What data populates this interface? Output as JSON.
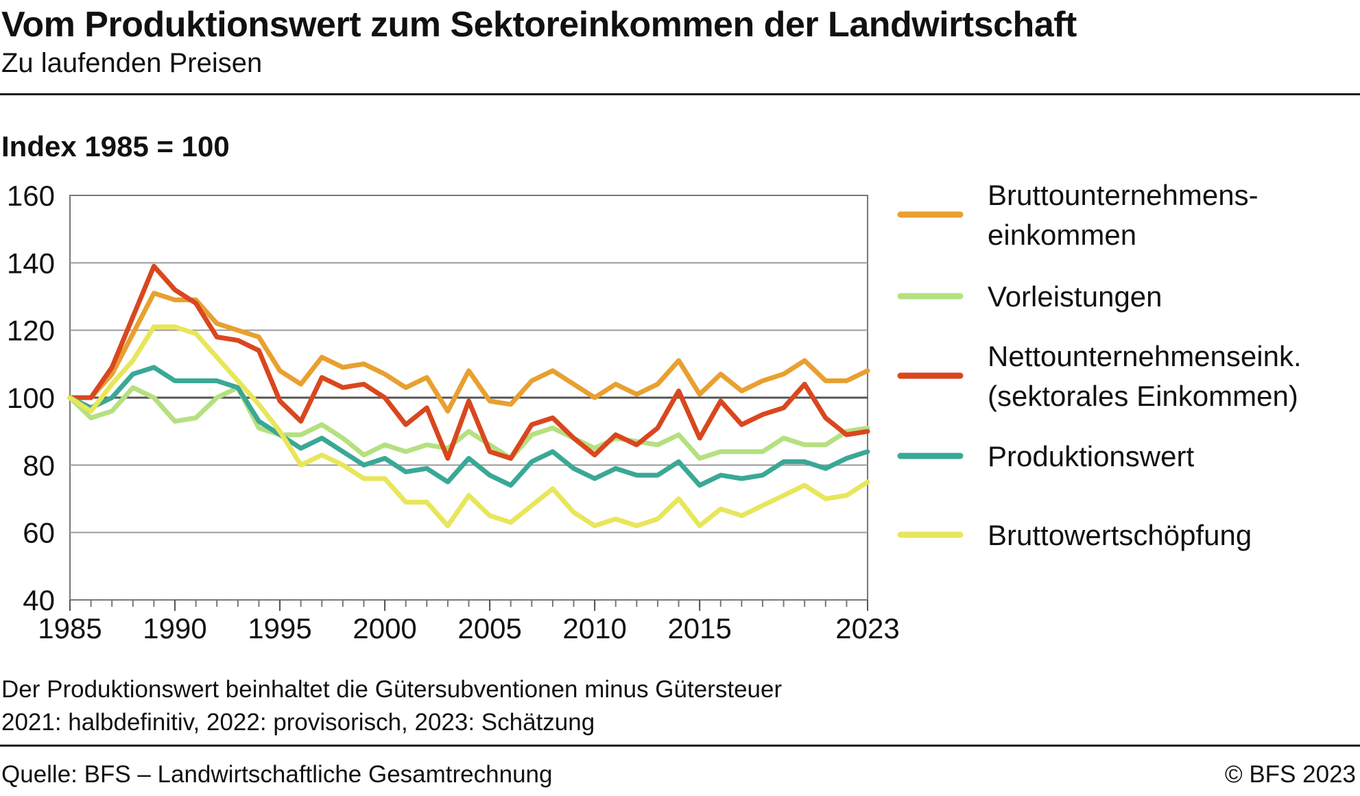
{
  "header": {
    "title": "Vom Produktionswert zum Sektoreinkommen der Landwirtschaft",
    "subtitle": "Zu laufenden Preisen"
  },
  "footer": {
    "note1": "Der Produktionswert beinhaltet die Gütersubventionen minus Gütersteuer",
    "note2": "2021: halbdefinitiv, 2022: provisorisch, 2023: Schätzung",
    "source": "Quelle: BFS – Landwirtschaftliche Gesamtrechnung",
    "copyright": "© BFS 2023"
  },
  "chart_data": {
    "type": "line",
    "ylabel": "Index 1985 = 100",
    "ylim": [
      40,
      160
    ],
    "yticks": [
      40,
      60,
      80,
      100,
      120,
      140,
      160
    ],
    "xlim": [
      1985,
      2023
    ],
    "xticks": [
      1985,
      1990,
      1995,
      2000,
      2005,
      2010,
      2015,
      2023
    ],
    "grid": true,
    "reference_line": 100,
    "legend_position": "right",
    "x": [
      1985,
      1986,
      1987,
      1988,
      1989,
      1990,
      1991,
      1992,
      1993,
      1994,
      1995,
      1996,
      1997,
      1998,
      1999,
      2000,
      2001,
      2002,
      2003,
      2004,
      2005,
      2006,
      2007,
      2008,
      2009,
      2010,
      2011,
      2012,
      2013,
      2014,
      2015,
      2016,
      2017,
      2018,
      2019,
      2020,
      2021,
      2022,
      2023
    ],
    "series": [
      {
        "name": "Bruttounternehmens-\neinkommen",
        "color": "#e8a030",
        "values": [
          100,
          100,
          107,
          119,
          131,
          129,
          129,
          122,
          120,
          118,
          108,
          104,
          112,
          109,
          110,
          107,
          103,
          106,
          96,
          108,
          99,
          98,
          105,
          108,
          104,
          100,
          104,
          101,
          104,
          111,
          101,
          107,
          102,
          105,
          107,
          111,
          105,
          105,
          108
        ]
      },
      {
        "name": "Vorleistungen",
        "color": "#b5e080",
        "values": [
          100,
          94,
          96,
          103,
          100,
          93,
          94,
          100,
          103,
          91,
          89,
          89,
          92,
          88,
          83,
          86,
          84,
          86,
          85,
          90,
          86,
          82,
          89,
          91,
          88,
          85,
          88,
          87,
          86,
          89,
          82,
          84,
          84,
          84,
          88,
          86,
          86,
          90,
          91
        ]
      },
      {
        "name": "Nettounternehmenseink.\n(sektorales Einkommen)",
        "color": "#d9471f",
        "values": [
          100,
          100,
          109,
          124,
          139,
          132,
          128,
          118,
          117,
          114,
          99,
          93,
          106,
          103,
          104,
          100,
          92,
          97,
          82,
          99,
          84,
          82,
          92,
          94,
          88,
          83,
          89,
          86,
          91,
          102,
          88,
          99,
          92,
          95,
          97,
          104,
          94,
          89,
          90
        ]
      },
      {
        "name": "Produktionswert",
        "color": "#3aa896",
        "values": [
          100,
          97,
          100,
          107,
          109,
          105,
          105,
          105,
          103,
          93,
          89,
          85,
          88,
          84,
          80,
          82,
          78,
          79,
          75,
          82,
          77,
          74,
          81,
          84,
          79,
          76,
          79,
          77,
          77,
          81,
          74,
          77,
          76,
          77,
          81,
          81,
          79,
          82,
          84
        ]
      },
      {
        "name": "Bruttowertschöpfung",
        "color": "#e8e65a",
        "values": [
          100,
          96,
          104,
          111,
          121,
          121,
          119,
          112,
          105,
          98,
          90,
          80,
          83,
          80,
          76,
          76,
          69,
          69,
          62,
          71,
          65,
          63,
          68,
          73,
          66,
          62,
          64,
          62,
          64,
          70,
          62,
          67,
          65,
          68,
          71,
          74,
          70,
          71,
          75
        ]
      }
    ]
  }
}
